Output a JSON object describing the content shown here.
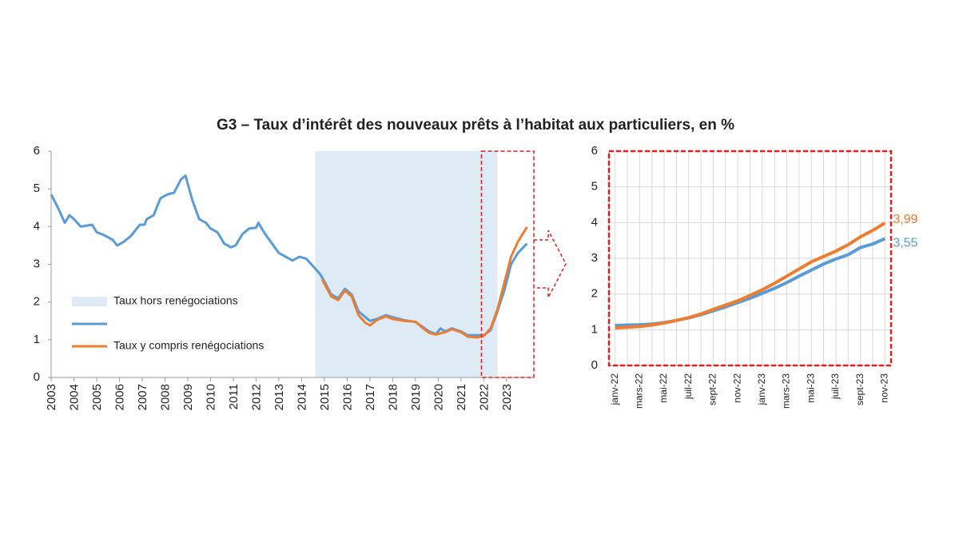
{
  "title": "G3 – Taux d’intérêt des nouveaux prêts à l’habitat aux particuliers, en %",
  "chart_data": [
    {
      "type": "line",
      "xlim": [
        2003,
        2024.2
      ],
      "xticks": [
        2003,
        2004,
        2005,
        2006,
        2007,
        2008,
        2009,
        2010,
        2011,
        2012,
        2013,
        2014,
        2015,
        2016,
        2017,
        2018,
        2019,
        2020,
        2021,
        2022,
        2023
      ],
      "ylim": [
        0,
        6
      ],
      "yticks": [
        0,
        1,
        2,
        3,
        4,
        5,
        6
      ],
      "shaded_band": {
        "name": "Taux hors renégociations",
        "color": "#deebf7",
        "x_range": [
          2014.6,
          2022.6
        ]
      },
      "zoom_box": {
        "color": "#e02020",
        "x_range": [
          2021.9,
          2024.2
        ]
      },
      "series": [
        {
          "color": "#5b9bd5",
          "x": [
            2003.0,
            2003.3,
            2003.6,
            2003.8,
            2004.0,
            2004.3,
            2004.8,
            2005.0,
            2005.3,
            2005.7,
            2005.9,
            2006.2,
            2006.5,
            2006.9,
            2007.1,
            2007.2,
            2007.5,
            2007.8,
            2008.1,
            2008.4,
            2008.7,
            2008.9,
            2009.2,
            2009.5,
            2009.8,
            2010.0,
            2010.3,
            2010.6,
            2010.9,
            2011.1,
            2011.4,
            2011.7,
            2012.0,
            2012.1,
            2012.4,
            2012.7,
            2013.0,
            2013.3,
            2013.6,
            2013.9,
            2014.2,
            2014.5,
            2014.8,
            2015.0,
            2015.3,
            2015.6,
            2015.9,
            2016.2,
            2016.5,
            2016.8,
            2017.0,
            2017.3,
            2017.7,
            2018.0,
            2018.5,
            2019.0,
            2019.3,
            2019.6,
            2019.9,
            2020.1,
            2020.3,
            2020.6,
            2021.0,
            2021.3,
            2021.7,
            2022.0,
            2022.3,
            2022.6,
            2022.9,
            2023.2,
            2023.5,
            2023.9
          ],
          "values": [
            4.85,
            4.5,
            4.1,
            4.3,
            4.2,
            4.0,
            4.05,
            3.85,
            3.78,
            3.65,
            3.5,
            3.6,
            3.75,
            4.05,
            4.05,
            4.2,
            4.3,
            4.75,
            4.85,
            4.9,
            5.25,
            5.35,
            4.7,
            4.2,
            4.1,
            3.95,
            3.85,
            3.55,
            3.45,
            3.5,
            3.8,
            3.95,
            3.97,
            4.1,
            3.8,
            3.55,
            3.3,
            3.2,
            3.1,
            3.2,
            3.15,
            2.95,
            2.75,
            2.55,
            2.2,
            2.1,
            2.35,
            2.2,
            1.75,
            1.6,
            1.5,
            1.55,
            1.65,
            1.6,
            1.52,
            1.47,
            1.35,
            1.22,
            1.15,
            1.3,
            1.22,
            1.3,
            1.22,
            1.12,
            1.12,
            1.12,
            1.25,
            1.75,
            2.3,
            3.0,
            3.3,
            3.55
          ]
        },
        {
          "name": "Taux y compris renégociations",
          "color": "#ed7d31",
          "x": [
            2014.9,
            2015.3,
            2015.6,
            2015.9,
            2016.2,
            2016.5,
            2016.8,
            2017.0,
            2017.3,
            2017.7,
            2018.0,
            2018.5,
            2019.0,
            2019.3,
            2019.6,
            2019.9,
            2020.3,
            2020.6,
            2021.0,
            2021.3,
            2021.7,
            2022.0,
            2022.3,
            2022.6,
            2022.9,
            2023.2,
            2023.5,
            2023.9
          ],
          "values": [
            2.6,
            2.15,
            2.05,
            2.3,
            2.15,
            1.65,
            1.45,
            1.38,
            1.52,
            1.62,
            1.55,
            1.5,
            1.48,
            1.32,
            1.18,
            1.14,
            1.2,
            1.28,
            1.2,
            1.08,
            1.06,
            1.1,
            1.3,
            1.8,
            2.5,
            3.2,
            3.6,
            3.99
          ]
        }
      ]
    },
    {
      "type": "line",
      "categories": [
        "janv-22",
        null,
        "mars-22",
        null,
        "mai-22",
        null,
        "juil-22",
        null,
        "sept-22",
        null,
        "nov-22",
        null,
        "janv-23",
        null,
        "mars-23",
        null,
        "mai-23",
        null,
        "juil-23",
        null,
        "sept-23",
        null,
        "nov-23"
      ],
      "ylim": [
        0,
        6
      ],
      "yticks": [
        0,
        1,
        2,
        3,
        4,
        5,
        6
      ],
      "grid": true,
      "border": {
        "color": "#e02020",
        "style": "dashed"
      },
      "series": [
        {
          "color": "#5b9bd5",
          "end_label": "3,55",
          "values": [
            1.12,
            1.13,
            1.14,
            1.16,
            1.2,
            1.26,
            1.33,
            1.42,
            1.53,
            1.64,
            1.76,
            1.88,
            2.02,
            2.16,
            2.32,
            2.5,
            2.67,
            2.84,
            2.98,
            3.1,
            3.3,
            3.4,
            3.55
          ]
        },
        {
          "color": "#ed7d31",
          "end_label": "3,99",
          "values": [
            1.05,
            1.07,
            1.09,
            1.13,
            1.19,
            1.26,
            1.34,
            1.44,
            1.57,
            1.69,
            1.81,
            1.96,
            2.12,
            2.3,
            2.5,
            2.7,
            2.9,
            3.05,
            3.2,
            3.38,
            3.6,
            3.78,
            3.99
          ]
        }
      ]
    }
  ]
}
